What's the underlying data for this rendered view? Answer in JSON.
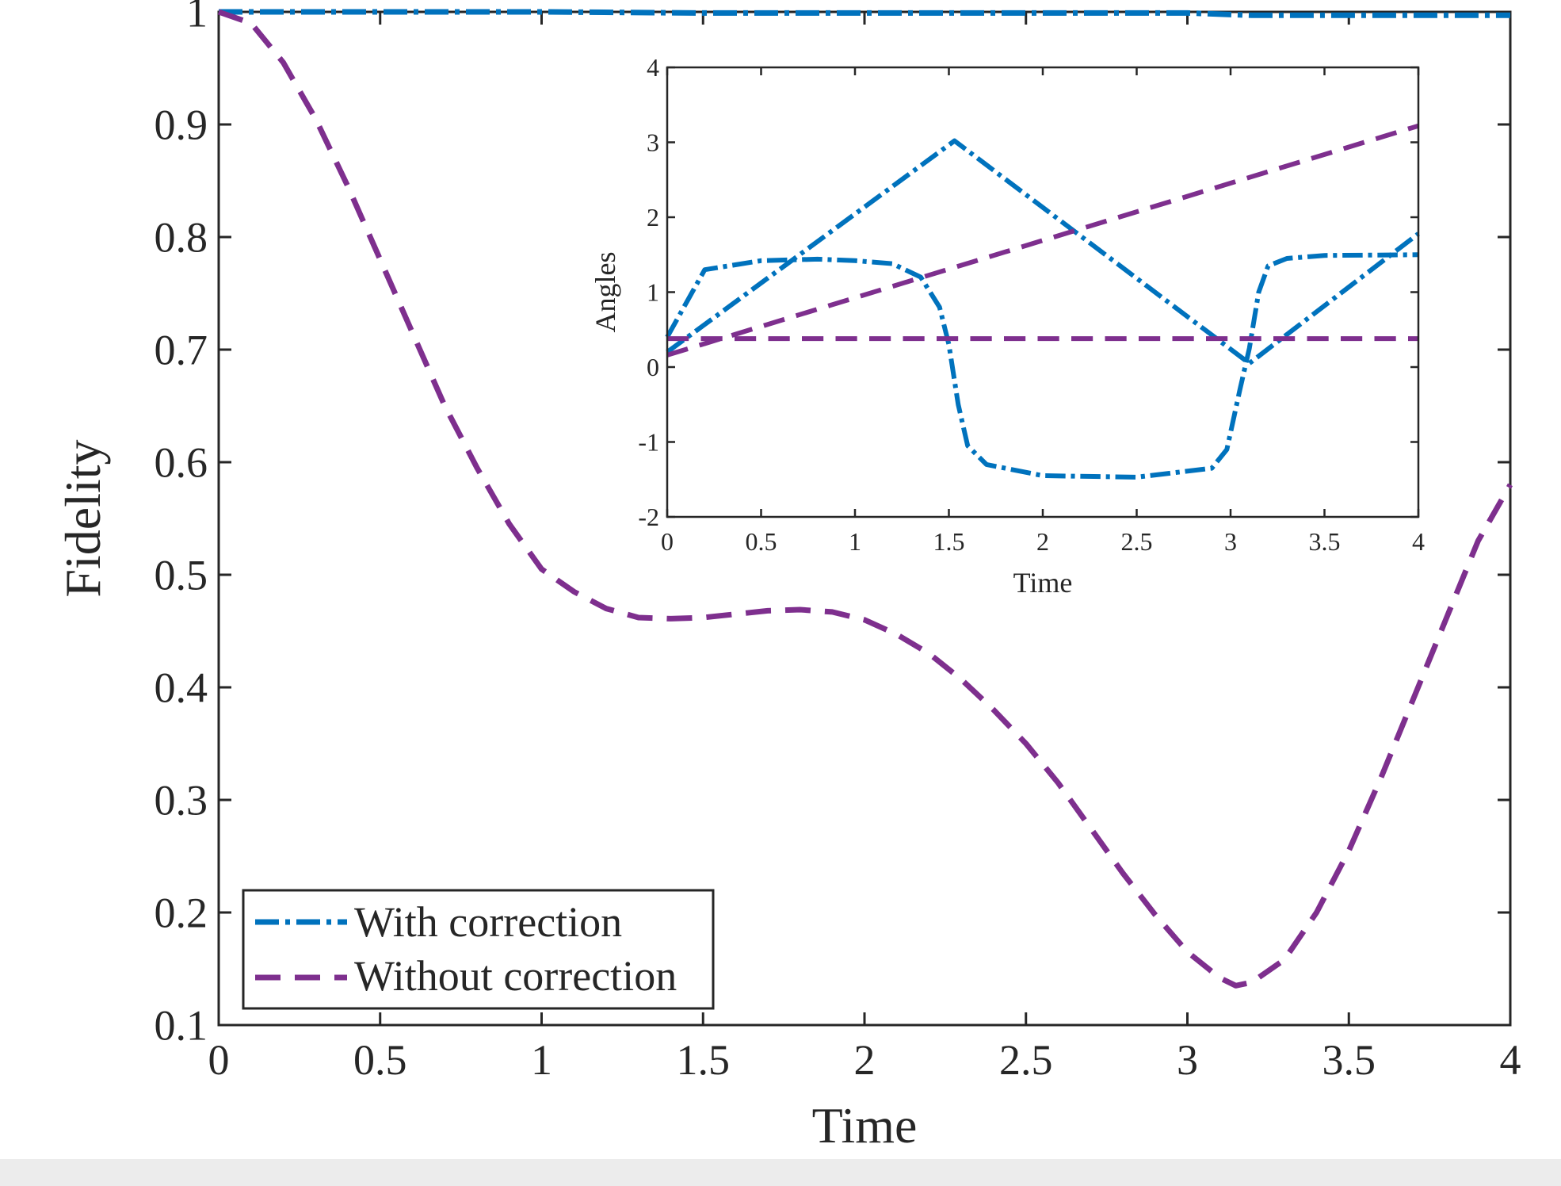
{
  "colors": {
    "with_correction": "#0072BD",
    "without_correction": "#7E2F8E",
    "axis": "#262626",
    "background": "#ffffff"
  },
  "chart_data": [
    {
      "type": "line",
      "xlabel": "Time",
      "ylabel": "Fidelity",
      "xlim": [
        0,
        4
      ],
      "ylim": [
        0.1,
        1
      ],
      "xticks": [
        "0",
        "0.5",
        "1",
        "1.5",
        "2",
        "2.5",
        "3",
        "3.5",
        "4"
      ],
      "yticks": [
        "0.1",
        "0.2",
        "0.3",
        "0.4",
        "0.5",
        "0.6",
        "0.7",
        "0.8",
        "0.9",
        "1"
      ],
      "grid": false,
      "legend_position": "bottom-left",
      "series": [
        {
          "name": "With correction",
          "style": "dash-dot",
          "x": [
            0,
            0.5,
            1,
            1.5,
            2,
            2.5,
            3,
            3.2,
            3.5,
            4
          ],
          "y": [
            1,
            1,
            1,
            0.999,
            0.999,
            0.999,
            0.999,
            0.997,
            0.997,
            0.997
          ]
        },
        {
          "name": "Without correction",
          "style": "dashed",
          "x": [
            0,
            0.1,
            0.2,
            0.3,
            0.4,
            0.5,
            0.6,
            0.7,
            0.8,
            0.9,
            1.0,
            1.1,
            1.2,
            1.3,
            1.4,
            1.5,
            1.6,
            1.7,
            1.8,
            1.9,
            2.0,
            2.1,
            2.2,
            2.3,
            2.4,
            2.5,
            2.6,
            2.7,
            2.8,
            2.9,
            3.0,
            3.1,
            3.15,
            3.2,
            3.3,
            3.4,
            3.5,
            3.6,
            3.7,
            3.8,
            3.9,
            4.0
          ],
          "y": [
            1.0,
            0.99,
            0.955,
            0.905,
            0.845,
            0.78,
            0.715,
            0.65,
            0.595,
            0.545,
            0.505,
            0.485,
            0.47,
            0.462,
            0.461,
            0.462,
            0.465,
            0.468,
            0.469,
            0.467,
            0.46,
            0.447,
            0.43,
            0.407,
            0.38,
            0.35,
            0.315,
            0.275,
            0.235,
            0.198,
            0.165,
            0.142,
            0.135,
            0.138,
            0.158,
            0.2,
            0.255,
            0.32,
            0.39,
            0.46,
            0.53,
            0.58
          ]
        }
      ]
    },
    {
      "type": "line",
      "xlabel": "Time",
      "ylabel": "Angles",
      "xlim": [
        0,
        4
      ],
      "ylim": [
        -2,
        4
      ],
      "xticks": [
        "0",
        "0.5",
        "1",
        "1.5",
        "2",
        "2.5",
        "3",
        "3.5",
        "4"
      ],
      "yticks": [
        "-2",
        "-1",
        "0",
        "1",
        "2",
        "3",
        "4"
      ],
      "grid": false,
      "position": "inset top-right",
      "series": [
        {
          "style": "dash-dot",
          "color_ref": "with_correction",
          "x": [
            0,
            0.2,
            0.5,
            0.8,
            1.0,
            1.2,
            1.35,
            1.45,
            1.5,
            1.55,
            1.6,
            1.7,
            2.0,
            2.5,
            2.9,
            2.98,
            3.05,
            3.1,
            3.15,
            3.2,
            3.3,
            3.5,
            4.0
          ],
          "y": [
            0.4,
            1.3,
            1.42,
            1.44,
            1.42,
            1.38,
            1.2,
            0.8,
            0.3,
            -0.5,
            -1.05,
            -1.3,
            -1.45,
            -1.47,
            -1.35,
            -1.1,
            -0.3,
            0.25,
            1.0,
            1.35,
            1.45,
            1.49,
            1.5
          ]
        },
        {
          "style": "dash-dot",
          "color_ref": "with_correction",
          "x": [
            0,
            1.53,
            3.1,
            4
          ],
          "y": [
            0.2,
            3.02,
            0.05,
            1.78
          ]
        },
        {
          "style": "dashed",
          "color_ref": "without_correction",
          "x": [
            0,
            4
          ],
          "y": [
            0.38,
            0.38
          ]
        },
        {
          "style": "dashed",
          "color_ref": "without_correction",
          "x": [
            0,
            4
          ],
          "y": [
            0.16,
            3.22
          ]
        }
      ]
    }
  ]
}
